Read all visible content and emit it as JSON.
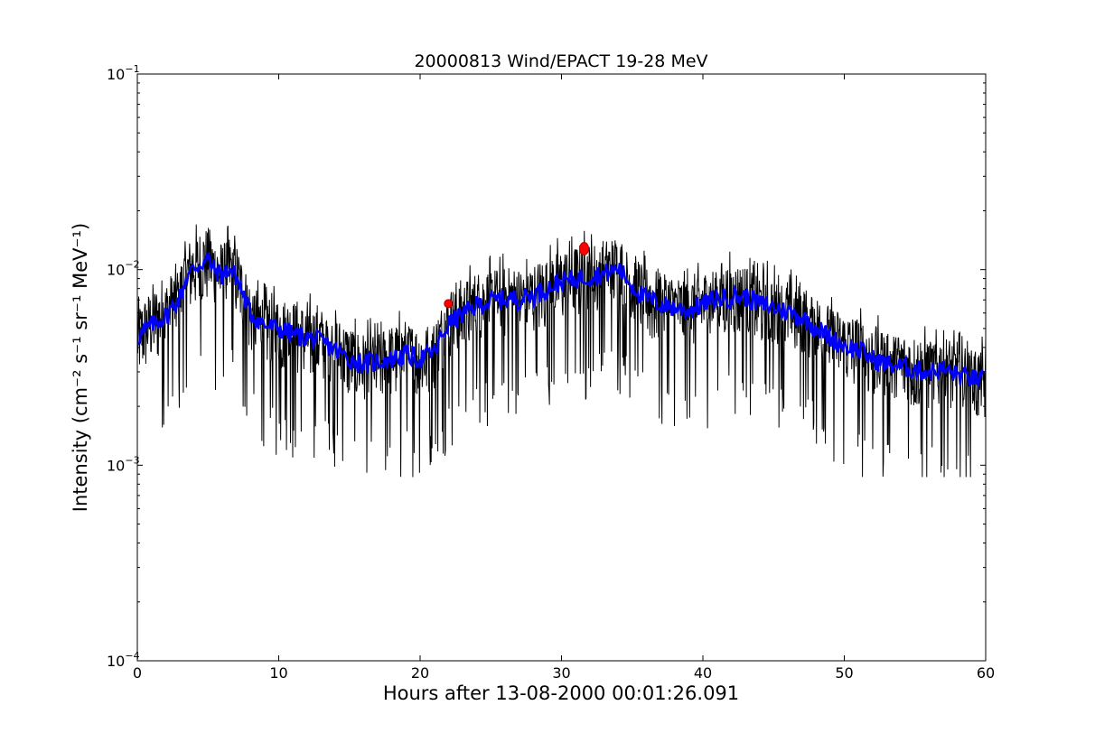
{
  "chart_data": {
    "type": "line",
    "title": "20000813 Wind/EPACT 19-28 MeV",
    "xlabel": "Hours after 13-08-2000 00:01:26.091",
    "ylabel": "Intensity (cm⁻² s⁻¹ sr⁻¹ MeV⁻¹)",
    "xlim": [
      0,
      60
    ],
    "ylim": [
      0.0001,
      0.1
    ],
    "yscale": "log",
    "x_ticks": [
      0,
      10,
      20,
      30,
      40,
      50,
      60
    ],
    "x_tick_labels": [
      "0",
      "10",
      "20",
      "30",
      "40",
      "50",
      "60"
    ],
    "y_ticks": [
      0.0001,
      0.001,
      0.01,
      0.1
    ],
    "y_tick_labels": [
      {
        "base": "10",
        "exp": "−4"
      },
      {
        "base": "10",
        "exp": "−3"
      },
      {
        "base": "10",
        "exp": "−2"
      },
      {
        "base": "10",
        "exp": "−1"
      }
    ],
    "grid": false,
    "colors": {
      "raw": "#000000",
      "smoothed": "#0000ff",
      "markers": "#ff0000"
    },
    "series": [
      {
        "role": "raw",
        "x": [
          0,
          1,
          2,
          3,
          3.5,
          4,
          4.5,
          5,
          5.5,
          6,
          6.5,
          7,
          7.5,
          8,
          9,
          10,
          11,
          12,
          13,
          14,
          15,
          16,
          17,
          18,
          19,
          20,
          21,
          22,
          23,
          24,
          25,
          26,
          27,
          28,
          29,
          30,
          31,
          32,
          33,
          34,
          35,
          36,
          37,
          38,
          39,
          40,
          41,
          42,
          43,
          44,
          45,
          46,
          47,
          48,
          49,
          50,
          51,
          52,
          53,
          54,
          55,
          56,
          57,
          58,
          59,
          60
        ],
        "y": [
          0.0045,
          0.0055,
          0.006,
          0.0075,
          0.0095,
          0.0105,
          0.011,
          0.0115,
          0.01,
          0.0095,
          0.0105,
          0.0095,
          0.0075,
          0.006,
          0.0052,
          0.005,
          0.0048,
          0.0045,
          0.0044,
          0.004,
          0.0036,
          0.0033,
          0.0034,
          0.0036,
          0.0038,
          0.0035,
          0.0038,
          0.0055,
          0.006,
          0.0068,
          0.007,
          0.0072,
          0.0071,
          0.0075,
          0.0082,
          0.0088,
          0.0092,
          0.0095,
          0.0097,
          0.0105,
          0.0085,
          0.0072,
          0.0068,
          0.0065,
          0.0063,
          0.0068,
          0.0072,
          0.0075,
          0.0074,
          0.0068,
          0.0065,
          0.0062,
          0.0058,
          0.0052,
          0.0045,
          0.0042,
          0.004,
          0.0036,
          0.0034,
          0.0033,
          0.0032,
          0.0031,
          0.0032,
          0.003,
          0.0028,
          0.0027
        ]
      },
      {
        "role": "smoothed",
        "x": [
          0,
          1,
          2,
          3,
          3.5,
          4,
          4.5,
          5,
          5.5,
          6,
          6.5,
          7,
          7.5,
          8,
          9,
          10,
          11,
          12,
          13,
          14,
          15,
          16,
          17,
          18,
          19,
          20,
          21,
          22,
          23,
          24,
          25,
          26,
          27,
          28,
          29,
          30,
          31,
          32,
          33,
          34,
          35,
          36,
          37,
          38,
          39,
          40,
          41,
          42,
          43,
          44,
          45,
          46,
          47,
          48,
          49,
          50,
          51,
          52,
          53,
          54,
          55,
          56,
          57,
          58,
          59,
          60
        ],
        "y": [
          0.0045,
          0.0052,
          0.0058,
          0.0072,
          0.0092,
          0.0102,
          0.0108,
          0.0112,
          0.0099,
          0.0094,
          0.0102,
          0.0092,
          0.0074,
          0.006,
          0.0052,
          0.005,
          0.0047,
          0.0045,
          0.0043,
          0.0039,
          0.0035,
          0.0033,
          0.0034,
          0.0035,
          0.0037,
          0.0035,
          0.0038,
          0.0053,
          0.0059,
          0.0066,
          0.0069,
          0.0071,
          0.0071,
          0.0074,
          0.0081,
          0.0087,
          0.009,
          0.0093,
          0.0095,
          0.0102,
          0.0083,
          0.0071,
          0.0067,
          0.0064,
          0.0062,
          0.0067,
          0.0071,
          0.0073,
          0.0073,
          0.0067,
          0.0064,
          0.0061,
          0.0057,
          0.0051,
          0.0045,
          0.0041,
          0.0039,
          0.0035,
          0.0033,
          0.0032,
          0.0031,
          0.003,
          0.0031,
          0.0029,
          0.0028,
          0.0027
        ]
      },
      {
        "role": "markers",
        "points": [
          {
            "x": 22.0,
            "y": 0.0067
          },
          {
            "x": 31.6,
            "y": 0.0128
          }
        ]
      }
    ]
  }
}
